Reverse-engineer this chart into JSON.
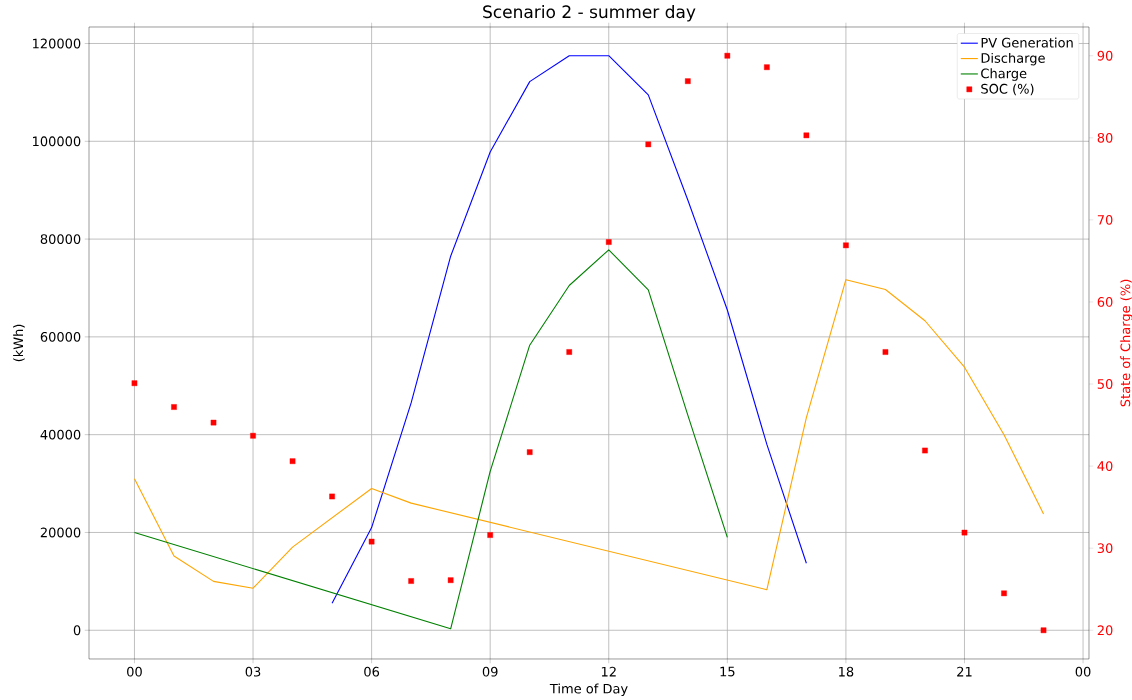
{
  "chart_data": {
    "type": "line",
    "title": "Scenario 2 - summer day",
    "xlabel": "Time of Day",
    "ylabel": "(kWh)",
    "y2label": "State of Charge (%)",
    "xlim": [
      -1.15,
      24.15
    ],
    "xticks": [
      {
        "value": 0,
        "label": "00"
      },
      {
        "value": 3,
        "label": "03"
      },
      {
        "value": 6,
        "label": "06"
      },
      {
        "value": 9,
        "label": "09"
      },
      {
        "value": 12,
        "label": "12"
      },
      {
        "value": 15,
        "label": "15"
      },
      {
        "value": 18,
        "label": "18"
      },
      {
        "value": 21,
        "label": "21"
      },
      {
        "value": 24,
        "label": "00"
      }
    ],
    "ylim": [
      -5875,
      123375
    ],
    "yticks": [
      0,
      20000,
      40000,
      60000,
      80000,
      100000,
      120000
    ],
    "y2lim": [
      16.5,
      93.5
    ],
    "y2ticks": [
      20,
      30,
      40,
      50,
      60,
      70,
      80,
      90
    ],
    "grid": true,
    "legend": "top right",
    "series": [
      {
        "name": "PV Generation",
        "color": "#0000ff",
        "x": [
          5,
          6,
          7,
          8,
          9,
          10,
          11,
          12,
          13,
          14,
          15,
          16,
          17
        ],
        "values": [
          5500,
          21000,
          46500,
          76500,
          97800,
          112200,
          117500,
          117500,
          109500,
          88000,
          65500,
          38000,
          13700
        ]
      },
      {
        "name": "Discharge",
        "color": "#ffa500",
        "x": [
          0,
          1,
          2,
          3,
          4,
          6,
          7,
          16,
          17,
          18,
          19,
          20,
          21,
          22,
          23
        ],
        "values": [
          31000,
          15200,
          10000,
          8600,
          17000,
          29000,
          26000,
          8300,
          43500,
          71700,
          69700,
          63300,
          53800,
          40000,
          23800
        ]
      },
      {
        "name": "Charge",
        "color": "#008000",
        "x": [
          0,
          8,
          9,
          10,
          11,
          12,
          13,
          14,
          15
        ],
        "values": [
          20000,
          300,
          32500,
          58300,
          70500,
          77800,
          69600,
          44000,
          19000
        ]
      },
      {
        "name": "SOC (%)",
        "type": "scatter",
        "axis": "y2",
        "marker": "square",
        "color": "#ff0000",
        "x": [
          0,
          1,
          2,
          3,
          4,
          5,
          6,
          7,
          8,
          9,
          10,
          11,
          12,
          13,
          14,
          15,
          16,
          17,
          18,
          19,
          20,
          21,
          22,
          23
        ],
        "values": [
          50.1,
          47.2,
          45.3,
          43.7,
          40.6,
          36.3,
          30.8,
          26.0,
          26.1,
          31.6,
          41.7,
          53.9,
          67.3,
          79.2,
          86.9,
          90.0,
          88.6,
          80.3,
          66.9,
          53.9,
          41.9,
          31.9,
          24.5,
          20.0
        ]
      }
    ]
  }
}
